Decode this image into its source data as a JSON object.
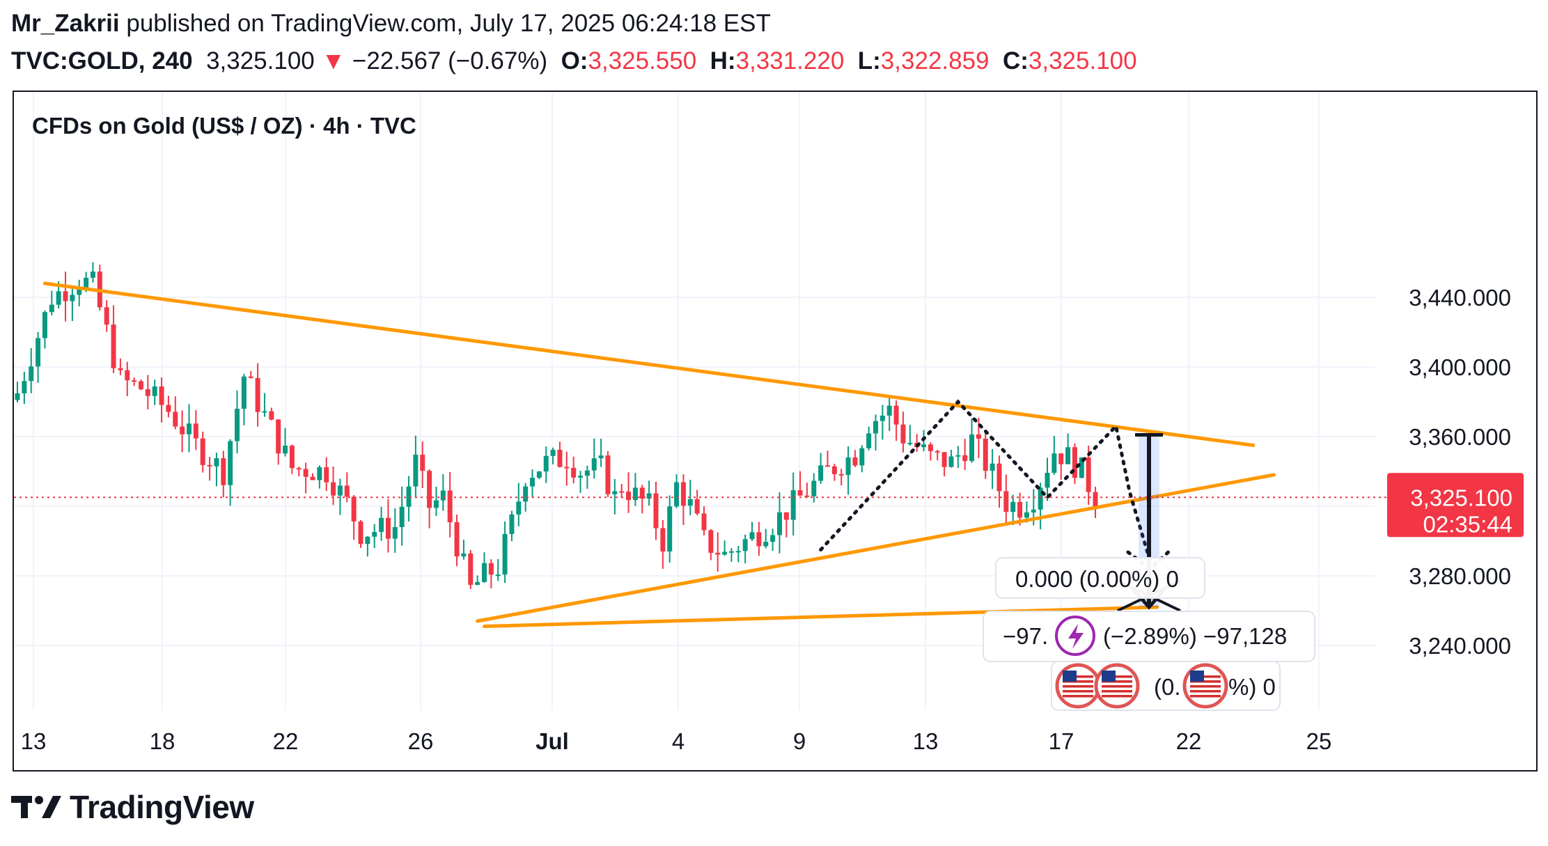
{
  "header": {
    "author": "Mr_Zakrii",
    "published_text": " published on TradingView.com, July 17, 2025 06:24:18 EST",
    "symbol": "TVC:GOLD, 240",
    "last": "3,325.100",
    "change_arrow": "▼",
    "change": "−22.567 (−0.67%)",
    "o_label": "O:",
    "o_val": "3,325.550",
    "h_label": "H:",
    "h_val": "3,331.220",
    "l_label": "L:",
    "l_val": "3,322.859",
    "c_label": "C:",
    "c_val": "3,325.100"
  },
  "footer": {
    "brand": "TradingView"
  },
  "colors": {
    "up": "#089981",
    "down": "#f23645",
    "trend": "#ff9800",
    "range": "#2962ff"
  },
  "chart_data": {
    "type": "candlestick",
    "title": "CFDs on Gold (US$ / OZ) · 4h · TVC",
    "ylim": [
      3210,
      3460
    ],
    "y_ticks": [
      3440,
      3400,
      3360,
      3280,
      3240
    ],
    "y_tick_labels": [
      "3,440.000",
      "3,400.000",
      "3,360.000",
      "3,280.000",
      "3,240.000"
    ],
    "x_tick_labels": [
      "13",
      "18",
      "22",
      "26",
      "Jul",
      "4",
      "9",
      "13",
      "17",
      "22",
      "25"
    ],
    "last_price": 3325.1,
    "last_price_label": "3,325.100",
    "countdown": "02:35:44",
    "close_path": [
      [
        0,
        3385
      ],
      [
        5,
        3440
      ],
      [
        9,
        3450
      ],
      [
        11,
        3447
      ],
      [
        13,
        3420
      ],
      [
        15,
        3392
      ],
      [
        18,
        3388
      ],
      [
        22,
        3375
      ],
      [
        26,
        3355
      ],
      [
        30,
        3340
      ],
      [
        33,
        3395
      ],
      [
        36,
        3372
      ],
      [
        40,
        3342
      ],
      [
        45,
        3340
      ],
      [
        48,
        3322
      ],
      [
        50,
        3305
      ],
      [
        55,
        3308
      ],
      [
        58,
        3345
      ],
      [
        60,
        3320
      ],
      [
        62,
        3325
      ],
      [
        65,
        3285
      ],
      [
        66,
        3272
      ],
      [
        68,
        3280
      ],
      [
        70,
        3285
      ],
      [
        72,
        3310
      ],
      [
        74,
        3338
      ],
      [
        77,
        3345
      ],
      [
        80,
        3348
      ],
      [
        82,
        3340
      ],
      [
        85,
        3342
      ],
      [
        87,
        3325
      ],
      [
        88,
        3332
      ],
      [
        92,
        3320
      ],
      [
        94,
        3300
      ],
      [
        96,
        3332
      ],
      [
        98,
        3320
      ],
      [
        100,
        3300
      ],
      [
        103,
        3292
      ],
      [
        106,
        3300
      ],
      [
        110,
        3310
      ],
      [
        114,
        3325
      ],
      [
        118,
        3340
      ],
      [
        122,
        3350
      ],
      [
        124,
        3368
      ],
      [
        127,
        3375
      ],
      [
        129,
        3360
      ],
      [
        133,
        3348
      ],
      [
        136,
        3345
      ],
      [
        139,
        3358
      ],
      [
        142,
        3338
      ],
      [
        144,
        3322
      ],
      [
        146,
        3320
      ],
      [
        148,
        3326
      ],
      [
        151,
        3352
      ],
      [
        153,
        3348
      ],
      [
        155,
        3340
      ],
      [
        157,
        3325
      ]
    ],
    "trendlines": [
      {
        "name": "upper",
        "from": [
          4,
          3448
        ],
        "to": [
          180,
          3355
        ]
      },
      {
        "name": "lower",
        "from": [
          67,
          3254
        ],
        "to": [
          183,
          3338
        ]
      },
      {
        "name": "base",
        "from": [
          68,
          3251
        ],
        "to": [
          166,
          3262
        ]
      }
    ],
    "projection": {
      "path": [
        [
          117,
          3295
        ],
        [
          137,
          3380
        ],
        [
          150,
          3325
        ],
        [
          160,
          3366
        ],
        [
          162,
          3328
        ],
        [
          165,
          3288
        ]
      ],
      "target": 3262
    },
    "measure": {
      "top": 3361,
      "bottom": 3262,
      "label_top": "0.000 (0.00%) 0",
      "label_mid_pre": "−97.",
      "label_mid_post": "(−2.89%) −97,128",
      "label_bot_pre": "(0.",
      "label_bot_post": "%) 0"
    }
  }
}
